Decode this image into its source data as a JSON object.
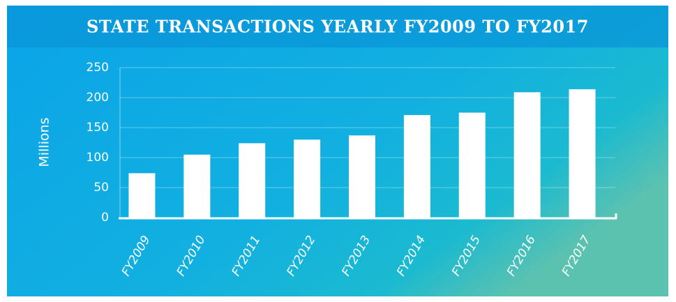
{
  "chart_data": {
    "type": "bar",
    "title": "STATE TRANSACTIONS YEARLY FY2009 TO FY2017",
    "y_label": "Millions",
    "categories": [
      "FY2009",
      "FY2010",
      "FY2011",
      "FY2012",
      "FY2013",
      "FY2014",
      "FY2015",
      "FY2016",
      "FY2017"
    ],
    "values": [
      74,
      105,
      124,
      130,
      137,
      171,
      175,
      209,
      214
    ],
    "color": "#ffffff",
    "ylim": [
      0,
      250
    ],
    "yticks": [
      0,
      50,
      100,
      150,
      200,
      250
    ],
    "grid": true
  }
}
